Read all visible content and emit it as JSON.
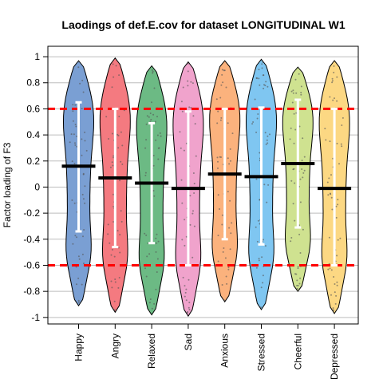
{
  "chart_data": {
    "type": "violin",
    "title": "Laodings of def.E.cov for dataset LONGITUDINAL W1",
    "xlabel": "",
    "ylabel": "Factor loading of F3",
    "ylim": [
      -1.05,
      1.08
    ],
    "y_ticks": [
      "-1",
      "-0.8",
      "-0.6",
      "-0.4",
      "-0.2",
      "0",
      "0.2",
      "0.4",
      "0.6",
      "0.8",
      "1"
    ],
    "grid": "horizontal gridlines at each y tick",
    "reference_lines": [
      {
        "value": 0.6,
        "color": "#ff0000",
        "style": "dashed"
      },
      {
        "value": -0.6,
        "color": "#ff0000",
        "style": "dashed"
      }
    ],
    "categories": [
      "Happy",
      "Angry",
      "Relaxed",
      "Sad",
      "Anxious",
      "Stressed",
      "Cheerful",
      "Depressed"
    ],
    "series": [
      {
        "category": "Happy",
        "color": "#7a9fd3",
        "min": -0.91,
        "max": 0.97,
        "mean": 0.16,
        "sd_low": -0.34,
        "sd_high": 0.65
      },
      {
        "category": "Angry",
        "color": "#f47a80",
        "min": -0.96,
        "max": 0.99,
        "mean": 0.07,
        "sd_low": -0.46,
        "sd_high": 0.6
      },
      {
        "category": "Relaxed",
        "color": "#6cba84",
        "min": -0.98,
        "max": 0.93,
        "mean": 0.03,
        "sd_low": -0.43,
        "sd_high": 0.49
      },
      {
        "category": "Sad",
        "color": "#f0a3cc",
        "min": -0.99,
        "max": 0.96,
        "mean": -0.01,
        "sd_low": -0.6,
        "sd_high": 0.58
      },
      {
        "category": "Anxious",
        "color": "#fbb27d",
        "min": -0.88,
        "max": 0.97,
        "mean": 0.1,
        "sd_low": -0.4,
        "sd_high": 0.6
      },
      {
        "category": "Stressed",
        "color": "#7fc6f1",
        "min": -0.94,
        "max": 0.98,
        "mean": 0.08,
        "sd_low": -0.44,
        "sd_high": 0.61
      },
      {
        "category": "Cheerful",
        "color": "#cfe290",
        "min": -0.8,
        "max": 0.92,
        "mean": 0.18,
        "sd_low": -0.31,
        "sd_high": 0.67
      },
      {
        "category": "Depressed",
        "color": "#fcd883",
        "min": -0.97,
        "max": 0.97,
        "mean": -0.01,
        "sd_low": -0.6,
        "sd_high": 0.6
      }
    ]
  }
}
